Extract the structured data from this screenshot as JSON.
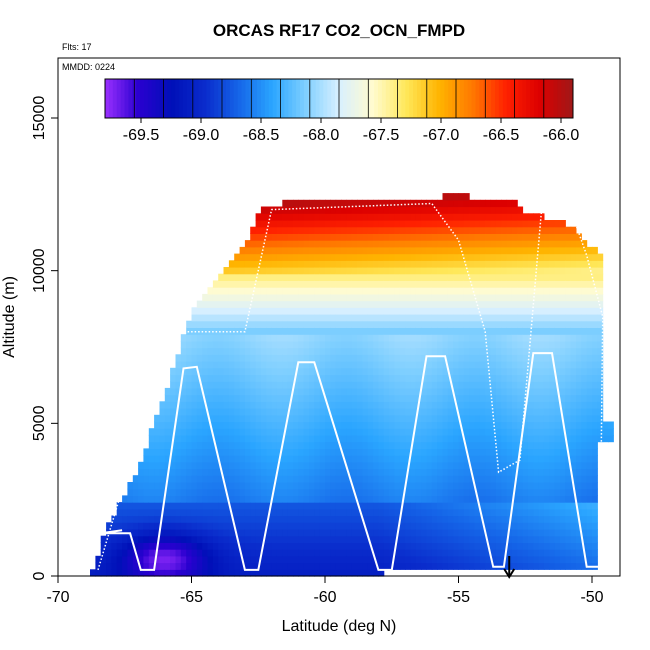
{
  "chart_data": {
    "type": "heatmap",
    "title": "ORCAS RF17 CO2_OCN_FMPD",
    "flights_label": "Flts: 17",
    "date_label": "MMDD: 0224",
    "xlabel": "Latitude (deg N)",
    "ylabel": "Altitude (m)",
    "xlim": [
      -70,
      -49
    ],
    "ylim": [
      0,
      17000
    ],
    "xticks": [
      -70,
      -65,
      -60,
      -55,
      -50
    ],
    "yticks": [
      0,
      5000,
      10000,
      15000
    ],
    "colorbar": {
      "range": [
        -69.8,
        -65.9
      ],
      "ticks": [
        -69.5,
        -69.0,
        -68.5,
        -68.0,
        -67.5,
        -67.0,
        -66.5,
        -66.0
      ],
      "tick_labels": [
        "-69.5",
        "-69.0",
        "-68.5",
        "-68.0",
        "-67.5",
        "-67.0",
        "-66.5",
        "-66.0"
      ],
      "colors": [
        "#9b30ff",
        "#2a00d0",
        "#0010b8",
        "#0a2ccc",
        "#1565e8",
        "#2aa5ff",
        "#7fcfff",
        "#d8f0ff",
        "#fffbd0",
        "#ffe85a",
        "#ffb400",
        "#ff7800",
        "#ff2000",
        "#dc0000",
        "#a01818"
      ],
      "bands": 16
    },
    "boundary": [
      [
        -68.8,
        0
      ],
      [
        -68.5,
        600
      ],
      [
        -68.2,
        1600
      ],
      [
        -67.0,
        3500
      ],
      [
        -66.0,
        6000
      ],
      [
        -65.5,
        7200
      ],
      [
        -65.3,
        8000
      ],
      [
        -64.8,
        9000
      ],
      [
        -64.0,
        9800
      ],
      [
        -63.0,
        10800
      ],
      [
        -62.5,
        11800
      ],
      [
        -62.3,
        12200
      ],
      [
        -56.0,
        12300
      ],
      [
        -55.5,
        12500
      ],
      [
        -53.0,
        12300
      ],
      [
        -52.5,
        11900
      ],
      [
        -51.0,
        11600
      ],
      [
        -50.5,
        11200
      ],
      [
        -49.7,
        10500
      ],
      [
        -49.6,
        5200
      ],
      [
        -49.2,
        5000
      ],
      [
        -49.2,
        4300
      ],
      [
        -49.7,
        4300
      ],
      [
        -49.7,
        200
      ],
      [
        -57.8,
        200
      ],
      [
        -57.8,
        0
      ]
    ],
    "value_model": {
      "low_pocket": {
        "lat": -66.0,
        "alt": 600,
        "value": -69.8
      },
      "deep_blue_top_alt": 2400,
      "surface_value": -69.1,
      "mid_value": -68.25,
      "upper_value": -67.7,
      "top_value": -66.0
    },
    "flight_track": [
      [
        -67.6,
        1500
      ],
      [
        -68.4,
        1400
      ],
      [
        -67.3,
        1400
      ],
      [
        -66.9,
        200
      ],
      [
        -66.4,
        200
      ],
      [
        -65.3,
        6800
      ],
      [
        -64.8,
        6850
      ],
      [
        -63.0,
        200
      ],
      [
        -62.5,
        200
      ],
      [
        -61.0,
        7000
      ],
      [
        -60.4,
        7000
      ],
      [
        -58.0,
        200
      ],
      [
        -57.5,
        200
      ],
      [
        -56.2,
        7200
      ],
      [
        -55.5,
        7200
      ],
      [
        -53.7,
        300
      ],
      [
        -53.3,
        300
      ],
      [
        -52.2,
        7300
      ],
      [
        -51.5,
        7300
      ],
      [
        -50.2,
        300
      ],
      [
        -49.7,
        300
      ]
    ],
    "flight_track_dotted": [
      [
        -68.5,
        200
      ],
      [
        -66.0,
        7500
      ],
      [
        -65.5,
        8000
      ],
      [
        -63.0,
        8000
      ],
      [
        -62.0,
        12000
      ],
      [
        -56.0,
        12200
      ],
      [
        -55.0,
        11000
      ],
      [
        -54.0,
        8000
      ],
      [
        -53.5,
        3400
      ],
      [
        -52.7,
        3800
      ],
      [
        -51.9,
        11900
      ],
      [
        -50.8,
        12000
      ],
      [
        -50.2,
        10500
      ],
      [
        -49.6,
        8500
      ],
      [
        -49.7,
        300
      ]
    ],
    "marker": {
      "lat": -53.1,
      "alt": 400,
      "label": "arrow"
    }
  }
}
